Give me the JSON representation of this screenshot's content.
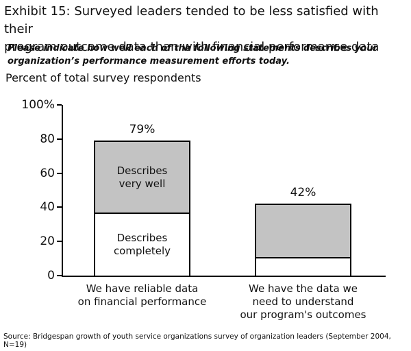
{
  "title": "Exhibit 15: Surveyed leaders tended to be less satisfied with their\nprogram outcome data than with financial performance data",
  "question": "Please indicate how well each of the following statements describes your\norganization’s performance measurement efforts today.",
  "units_label": "Percent of total survey respondents",
  "source": "Source: Bridgespan growth of youth service organizations survey of organization leaders (September 2004, N=19)",
  "colors": {
    "segment_gray": "#c3c3c3",
    "segment_white": "#ffffff",
    "axis": "#000000",
    "text": "#111111"
  },
  "chart_data": {
    "type": "bar",
    "stacked": true,
    "title": "",
    "ylabel": "Percent of total survey respondents",
    "xlabel": "",
    "ylim": [
      0,
      100
    ],
    "yticks": [
      0,
      20,
      40,
      60,
      80,
      100
    ],
    "ytick_labels": [
      "0",
      "20",
      "40",
      "60",
      "80",
      "100%"
    ],
    "grid": false,
    "legend": "labels drawn inside first bar segments",
    "categories": [
      "We have reliable data\non financial performance",
      "We have the data we\nneed to understand\nour program's outcomes"
    ],
    "series": [
      {
        "name": "Describes completely",
        "values": [
          37,
          11
        ]
      },
      {
        "name": "Describes very well",
        "values": [
          42,
          31
        ]
      }
    ],
    "totals": [
      79,
      42
    ],
    "total_labels": [
      "79%",
      "42%"
    ],
    "bars": [
      {
        "bar_name": "bar-financial-performance",
        "category": "We have reliable data\non financial performance",
        "total_label": "79%",
        "segments": [
          {
            "name": "describes-completely",
            "value": 37,
            "label": "Describes\ncompletely",
            "fill": "#ffffff"
          },
          {
            "name": "describes-very-well",
            "value": 42,
            "label": "Describes\nvery well",
            "fill": "#c3c3c3"
          }
        ]
      },
      {
        "bar_name": "bar-program-outcomes",
        "category": "We have the data we\nneed to understand\nour program's outcomes",
        "total_label": "42%",
        "segments": [
          {
            "name": "describes-completely",
            "value": 11,
            "label": "",
            "fill": "#ffffff"
          },
          {
            "name": "describes-very-well",
            "value": 31,
            "label": "",
            "fill": "#c3c3c3"
          }
        ]
      }
    ]
  }
}
